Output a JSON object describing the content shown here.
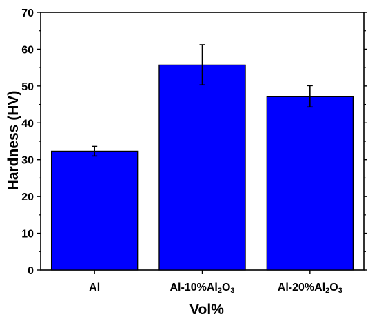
{
  "chart_data": {
    "type": "bar",
    "title": "",
    "xlabel": "Vol%",
    "ylabel": "Hardness (HV)",
    "categories": [
      {
        "base": "Al",
        "suffix": ""
      },
      {
        "base": "Al-10%Al",
        "suffix": "2O3"
      },
      {
        "base": "Al-20%Al",
        "suffix": "2O3"
      }
    ],
    "category_labels": [
      "Al",
      "Al-10%Al2O3",
      "Al-20%Al2O3"
    ],
    "values": [
      32.3,
      55.7,
      47.1
    ],
    "error_low": [
      31.0,
      50.3,
      44.3
    ],
    "error_high": [
      33.6,
      61.2,
      50.1
    ],
    "ylim": [
      0,
      70
    ],
    "yticks": [
      0,
      10,
      20,
      30,
      40,
      50,
      60,
      70
    ],
    "grid": false,
    "legend": "none",
    "colors": {
      "bar_fill": "#0000ff",
      "bar_stroke": "#000000",
      "axis": "#000000"
    }
  }
}
